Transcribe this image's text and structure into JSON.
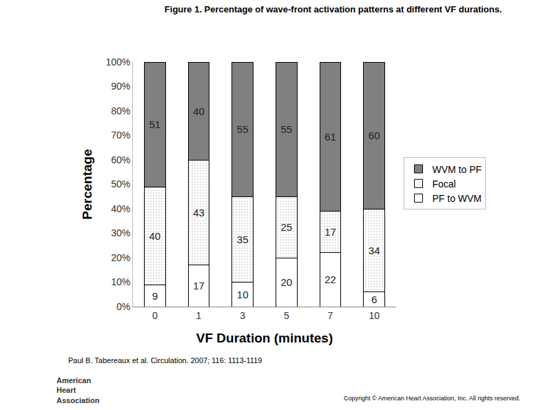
{
  "chart_data": {
    "type": "bar",
    "stacked": true,
    "data_labels": true,
    "grid": false,
    "legend": "right",
    "title": "Figure 1. Percentage of wave-front activation patterns at different VF durations.",
    "x_label": "VF Duration (minutes)",
    "y_label": "Percentage",
    "categories": [
      "0",
      "1",
      "3",
      "5",
      "7",
      "10"
    ],
    "series": [
      {
        "name": "PF to WVM",
        "color": "#ffffff",
        "values": [
          9,
          17,
          10,
          20,
          22,
          6
        ]
      },
      {
        "name": "Focal",
        "color": "#f4f4f4",
        "marker": "dotted",
        "values": [
          40,
          43,
          35,
          25,
          17,
          34
        ]
      },
      {
        "name": "WVM to PF",
        "color": "#808080",
        "values": [
          51,
          40,
          55,
          55,
          61,
          60
        ]
      }
    ],
    "ylim": [
      0,
      100
    ],
    "yticks": [
      {
        "value": 0,
        "label": "0%"
      },
      {
        "value": 10,
        "label": "10%"
      },
      {
        "value": 20,
        "label": "20%"
      },
      {
        "value": 30,
        "label": "30%"
      },
      {
        "value": 40,
        "label": "40%"
      },
      {
        "value": 50,
        "label": "50%"
      },
      {
        "value": 60,
        "label": "60%"
      },
      {
        "value": 70,
        "label": "70%"
      },
      {
        "value": 80,
        "label": "80%"
      },
      {
        "value": 90,
        "label": "90%"
      },
      {
        "value": 100,
        "label": "100%"
      }
    ],
    "annotations": {
      "citation": "Paul B. Tabereaux et al. Circulation. 2007; 116: 1113-1119",
      "copyright": "Copyright © American Heart Association, Inc. All rights reserved.",
      "logo": [
        "American",
        "Heart",
        "Association"
      ]
    }
  }
}
